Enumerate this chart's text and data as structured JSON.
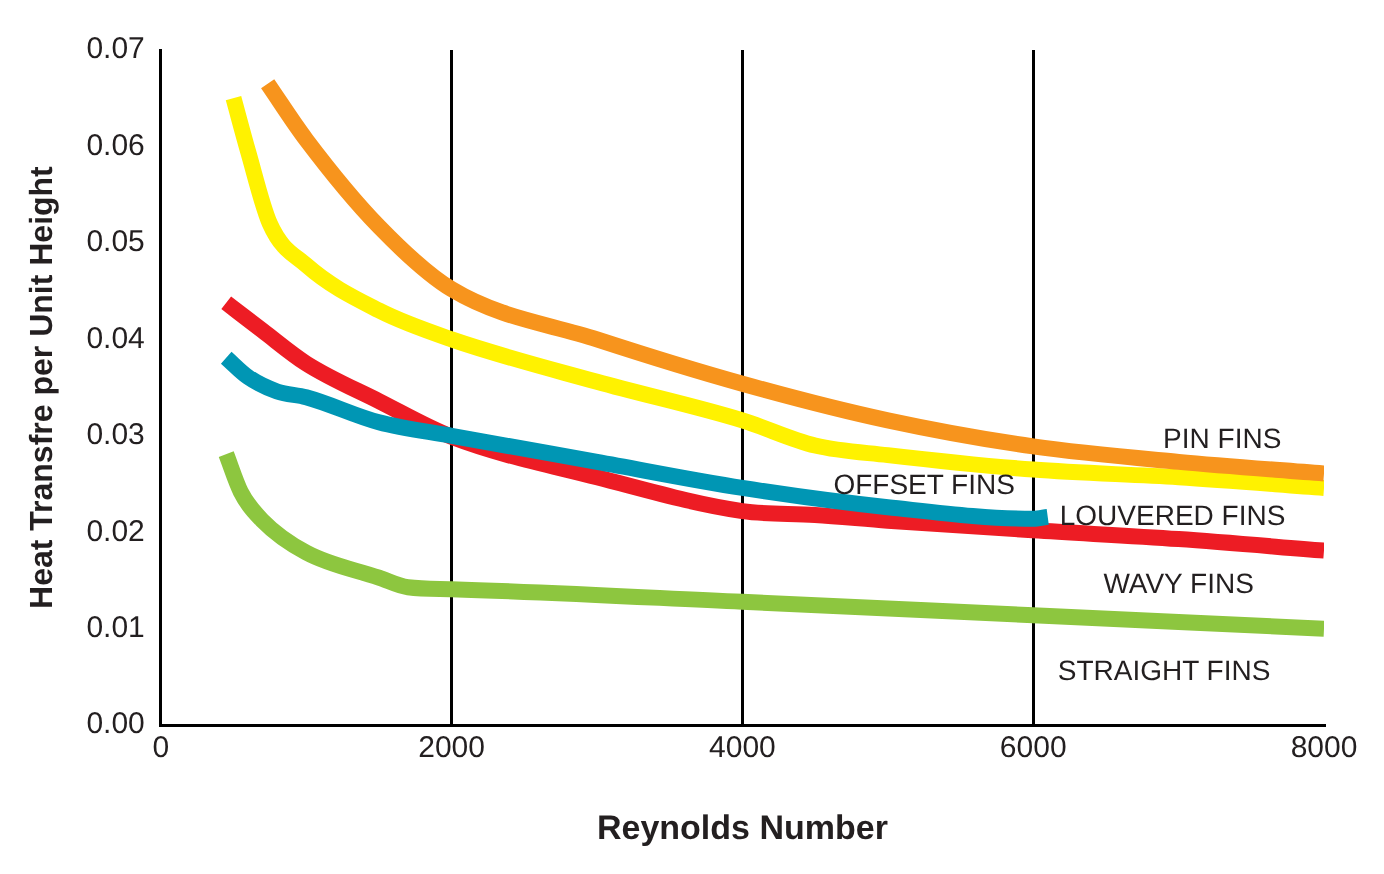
{
  "chart_data": {
    "type": "line",
    "xlabel": "Reynolds Number",
    "ylabel": "Heat Transfre per Unit Height",
    "xlim": [
      0,
      8000
    ],
    "xticks": [
      0,
      2000,
      4000,
      6000,
      8000
    ],
    "ylim": [
      0,
      0.07
    ],
    "yticks": [
      {
        "value": 0,
        "label": "0.00"
      },
      {
        "value": 0.01,
        "label": "0.01"
      },
      {
        "value": 0.02,
        "label": "0.02"
      },
      {
        "value": 0.03,
        "label": "0.03"
      },
      {
        "value": 0.04,
        "label": "0.04"
      },
      {
        "value": 0.05,
        "label": "0.05"
      },
      {
        "value": 0.06,
        "label": "0.06"
      },
      {
        "value": 0.07,
        "label": "0.07"
      }
    ],
    "grid": "x",
    "legend": false,
    "marker": "none",
    "line_style": "solid",
    "series": [
      {
        "name": "PIN FINS",
        "color": "#f7941d",
        "x": [
          735,
          1000,
          1500,
          2000,
          3000,
          4000,
          5000,
          6000,
          7000,
          8000
        ],
        "values": [
          0.0665,
          0.0607,
          0.0517,
          0.0452,
          0.04,
          0.0354,
          0.0316,
          0.0289,
          0.0273,
          0.0261
        ]
      },
      {
        "name": "OFFSET FINS",
        "color": "#fff200",
        "x": [
          500,
          600,
          750,
          1000,
          1500,
          2000,
          3000,
          4000,
          4500,
          5000,
          6000,
          7000,
          8000
        ],
        "values": [
          0.065,
          0.0595,
          0.052,
          0.0477,
          0.043,
          0.04,
          0.0356,
          0.0316,
          0.029,
          0.028,
          0.0265,
          0.0257,
          0.0246
        ]
      },
      {
        "name": "LOUVERED FINS",
        "color": "#0096b4",
        "x": [
          450,
          600,
          800,
          1000,
          1500,
          2000,
          3000,
          4000,
          5000,
          6000,
          6100
        ],
        "values": [
          0.0381,
          0.0361,
          0.0346,
          0.034,
          0.0314,
          0.03,
          0.0273,
          0.0246,
          0.0226,
          0.0214,
          0.0216
        ]
      },
      {
        "name": "WAVY FINS",
        "color": "#ed1c24",
        "x": [
          450,
          700,
          1000,
          1500,
          2000,
          3000,
          4000,
          4500,
          5000,
          6000,
          7000,
          8000
        ],
        "values": [
          0.0438,
          0.0409,
          0.0375,
          0.0336,
          0.0299,
          0.0257,
          0.0222,
          0.0218,
          0.0212,
          0.0202,
          0.0193,
          0.0181
        ]
      },
      {
        "name": "STRAIGHT FINS",
        "color": "#8dc63f",
        "x": [
          450,
          550,
          700,
          1000,
          1500,
          1700,
          2000,
          4000,
          6000,
          8000
        ],
        "values": [
          0.0281,
          0.0242,
          0.0212,
          0.0179,
          0.0153,
          0.0143,
          0.0141,
          0.0128,
          0.0114,
          0.01
        ]
      }
    ]
  }
}
